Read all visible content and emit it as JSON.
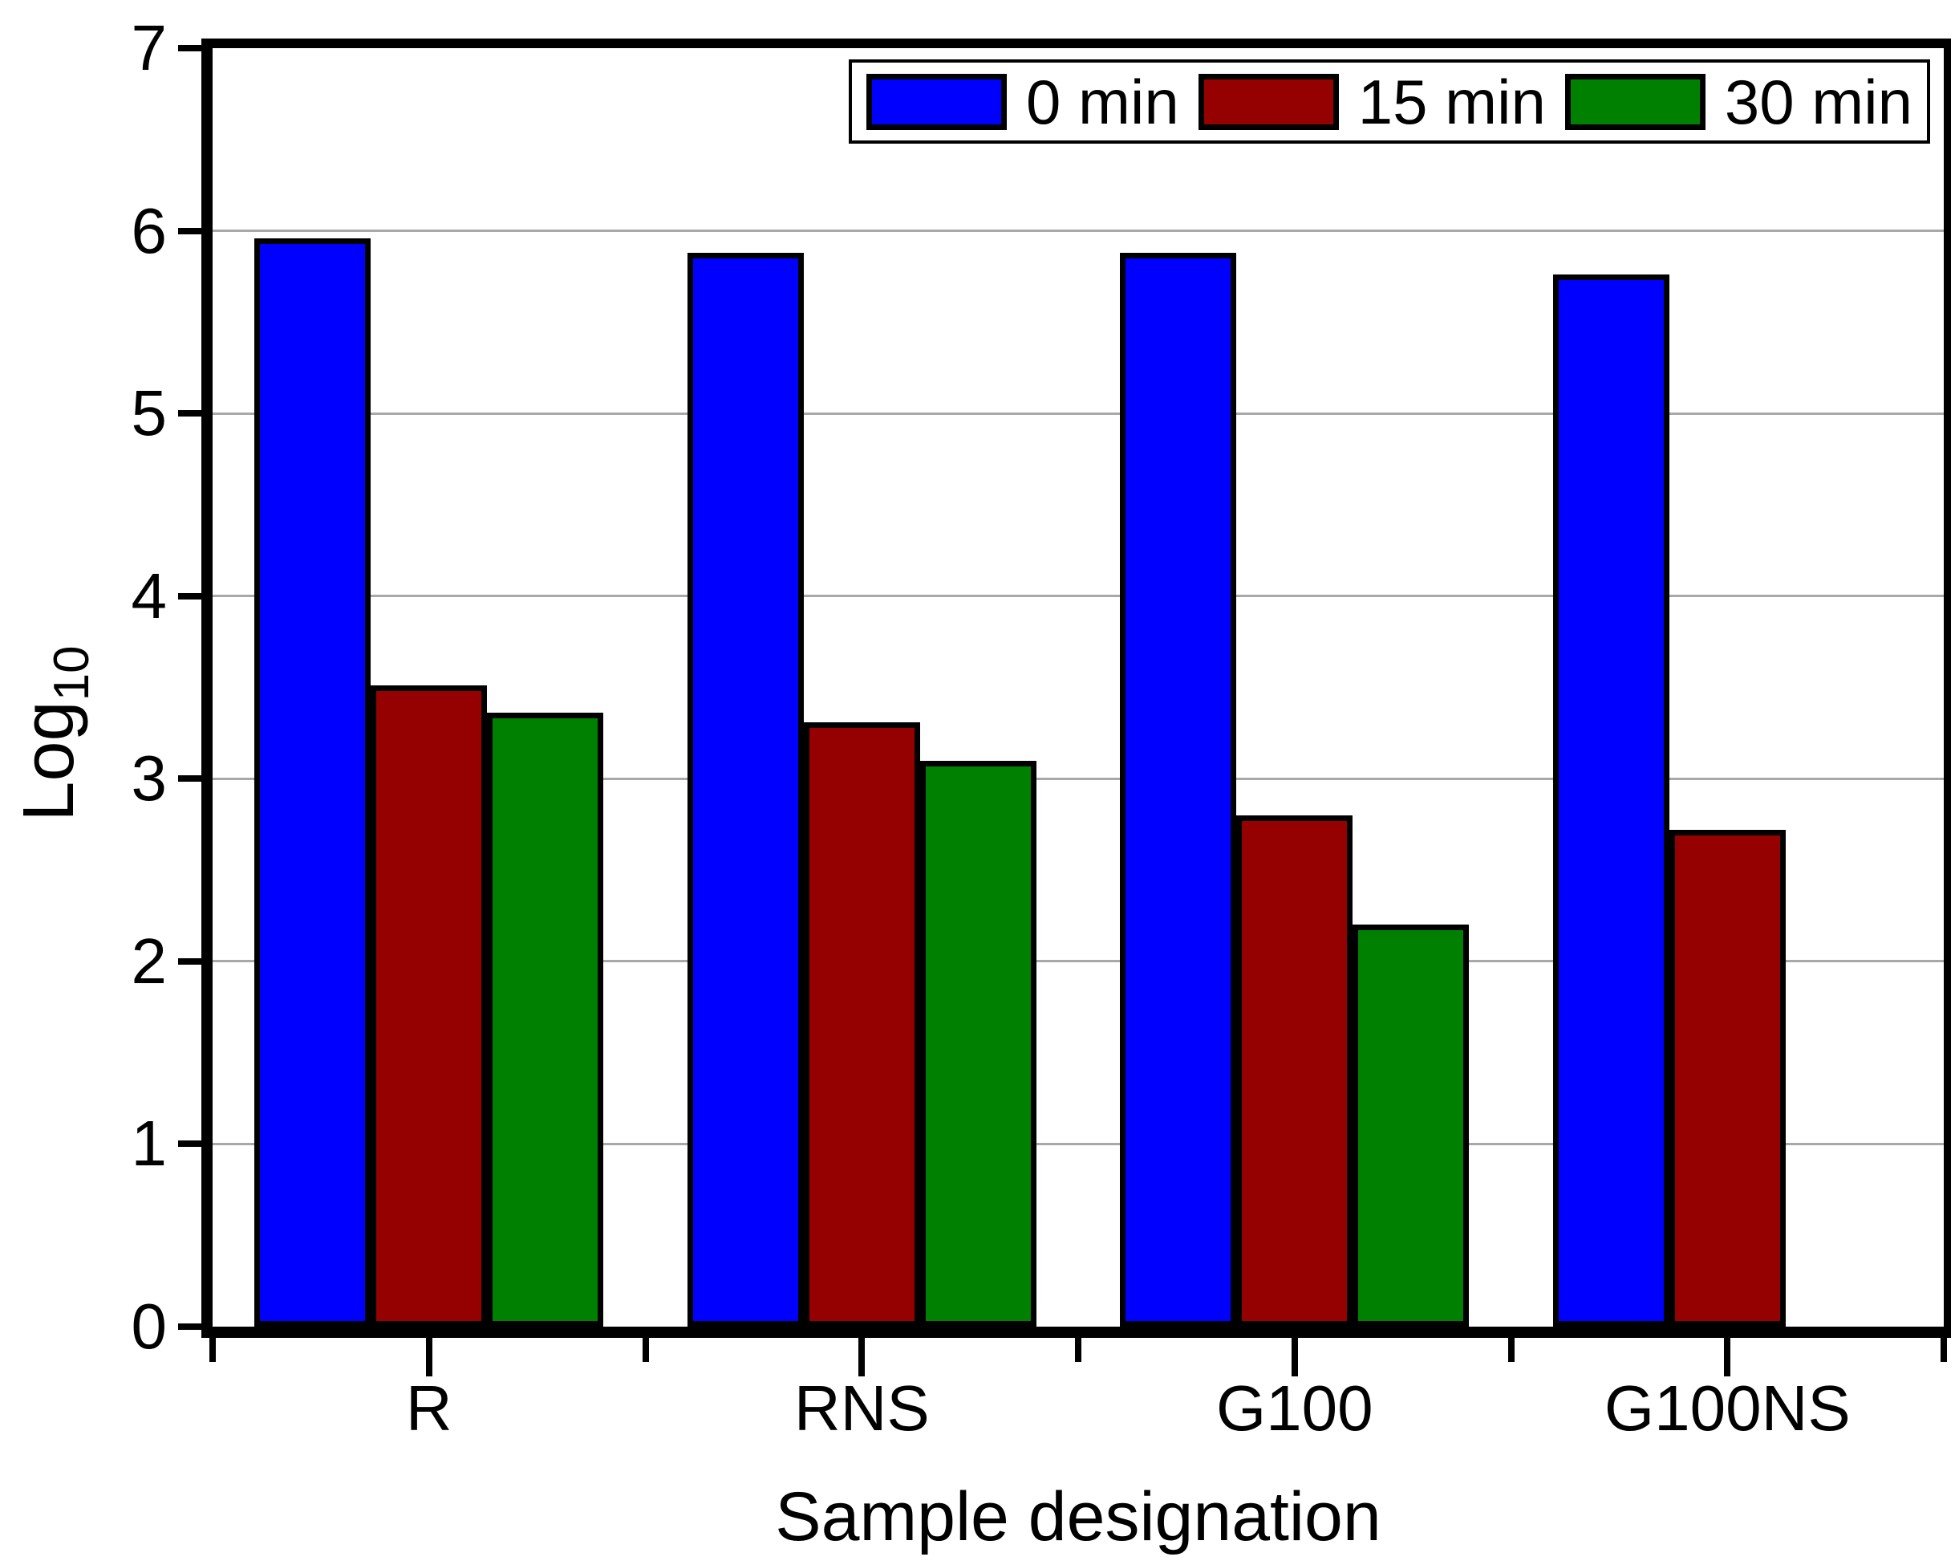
{
  "figure": {
    "background_color": "#ffffff",
    "axis_color": "#000000",
    "gridline_color": "#a8a8a8",
    "bar_border_color": "#000000"
  },
  "chart_data": {
    "type": "bar",
    "title": "",
    "categories": [
      "R",
      "RNS",
      "G100",
      "G100NS"
    ],
    "series": [
      {
        "name": "0 min",
        "color": "#0000ff",
        "values": [
          5.96,
          5.88,
          5.88,
          5.76
        ]
      },
      {
        "name": "15 min",
        "color": "#950000",
        "values": [
          3.51,
          3.31,
          2.8,
          2.72
        ]
      },
      {
        "name": "30 min",
        "color": "#008000",
        "values": [
          3.36,
          3.1,
          2.2,
          null
        ]
      }
    ],
    "xlabel": "Sample designation",
    "ylabel_base": "Log",
    "ylabel_sub": "10",
    "ylim": [
      0,
      7
    ],
    "yticks": [
      0,
      1,
      2,
      3,
      4,
      5,
      6,
      7
    ],
    "grid": "horizontal gridlines at integer y values 1-6",
    "legend_position": "top-right inside plot",
    "legend_labels": [
      "0 min",
      "15 min",
      "30 min"
    ]
  }
}
